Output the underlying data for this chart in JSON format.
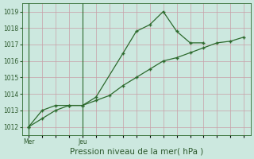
{
  "line1_x": [
    0,
    1,
    2,
    3,
    4,
    5,
    7,
    8,
    9,
    10,
    11,
    12,
    13
  ],
  "line1_y": [
    1012.0,
    1013.0,
    1013.3,
    1013.3,
    1013.3,
    1013.8,
    1016.45,
    1017.8,
    1018.2,
    1019.0,
    1017.8,
    1017.1,
    1017.1
  ],
  "line2_x": [
    0,
    1,
    2,
    3,
    4,
    5,
    6,
    7,
    8,
    9,
    10,
    11,
    12,
    13,
    14,
    15,
    16
  ],
  "line2_y": [
    1012.0,
    1012.5,
    1013.0,
    1013.3,
    1013.3,
    1013.6,
    1013.9,
    1014.5,
    1015.0,
    1015.5,
    1016.0,
    1016.2,
    1016.5,
    1016.8,
    1017.1,
    1017.2,
    1017.45
  ],
  "line_color": "#2d6a2d",
  "bg_color": "#cce8df",
  "grid_color": "#c8a0a8",
  "xlabel": "Pression niveau de la mer( hPa )",
  "mer_x": 0,
  "jeu_x": 4,
  "ylim": [
    1011.5,
    1019.5
  ],
  "xlim": [
    -0.5,
    16.5
  ],
  "yticks": [
    1012,
    1013,
    1014,
    1015,
    1016,
    1017,
    1018,
    1019
  ],
  "vline_x": [
    0,
    4
  ],
  "xtick_minor_positions": [
    0,
    1,
    2,
    3,
    4,
    5,
    6,
    7,
    8,
    9,
    10,
    11,
    12,
    13,
    14,
    15,
    16
  ],
  "xlabel_fontsize": 7.5,
  "ylabel_fontsize": 6,
  "tick_label_color": "#2d5a2d"
}
